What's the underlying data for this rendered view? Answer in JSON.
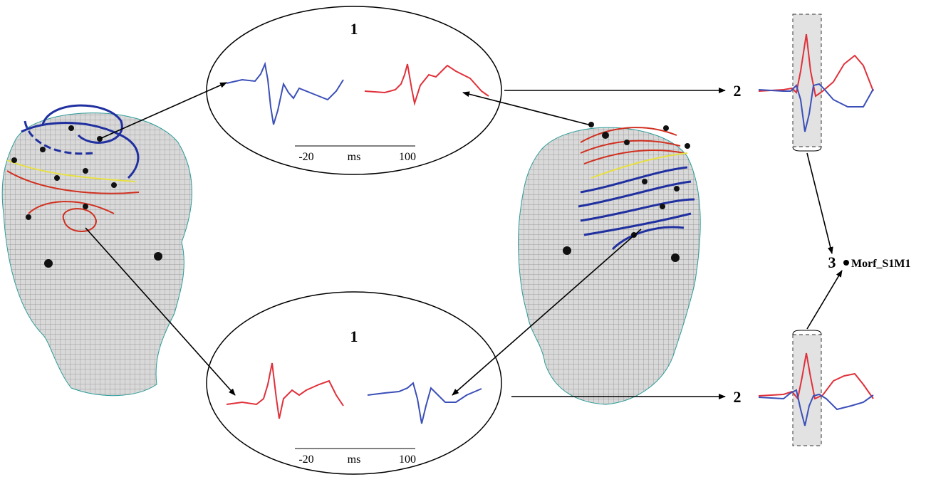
{
  "panels": [
    {
      "label": "1",
      "scale": {
        "start": "-20",
        "unit": "ms",
        "end": "100"
      }
    },
    {
      "label": "1",
      "scale": {
        "start": "-20",
        "unit": "ms",
        "end": "100"
      }
    }
  ],
  "steps": [
    {
      "label": "2"
    },
    {
      "label": "2"
    }
  ],
  "result": {
    "step": "3",
    "label": "Morf_S1M1"
  }
}
